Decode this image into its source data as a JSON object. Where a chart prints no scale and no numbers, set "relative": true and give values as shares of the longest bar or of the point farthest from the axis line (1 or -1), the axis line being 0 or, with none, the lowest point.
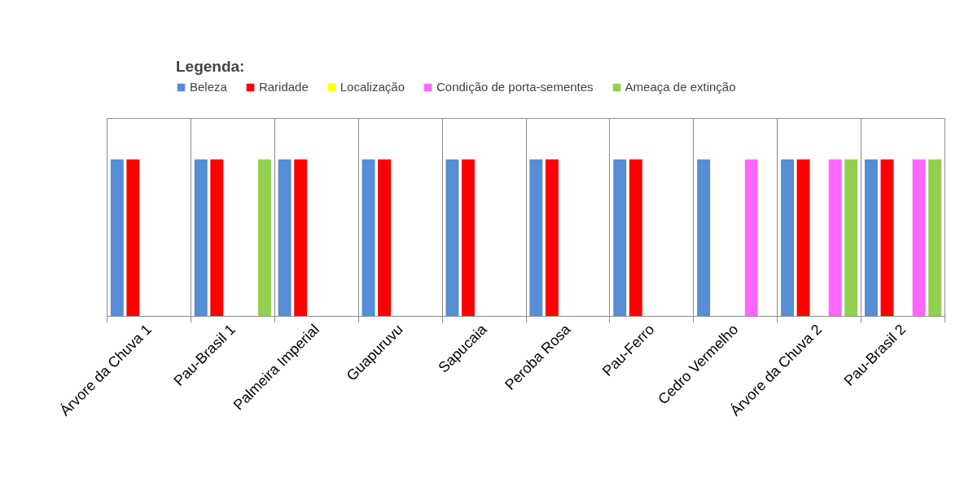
{
  "chart_data": {
    "type": "bar",
    "legend_title": "Legenda:",
    "relative": true,
    "grid": "x",
    "legend": "top",
    "categories": [
      "Árvore da Chuva 1",
      "Pau-Brasil 1",
      "Palmeira Imperial",
      "Guapuruvu",
      "Sapucaia",
      "Peroba Rosa",
      "Pau-Ferro",
      "Cedro Vermelho",
      "Árvore da Chuva 2",
      "Pau-Brasil 2"
    ],
    "series": [
      {
        "name": "Beleza",
        "color": "#558ed5",
        "values": [
          1,
          1,
          1,
          1,
          1,
          1,
          1,
          1,
          1,
          1
        ]
      },
      {
        "name": "Raridade",
        "color": "#ff0000",
        "values": [
          1,
          1,
          1,
          1,
          1,
          1,
          1,
          null,
          1,
          1
        ]
      },
      {
        "name": "Localização",
        "color": "#ffff00",
        "values": [
          null,
          null,
          null,
          null,
          null,
          null,
          null,
          null,
          null,
          null
        ]
      },
      {
        "name": "Condição de porta-sementes",
        "color": "#ff66ff",
        "values": [
          null,
          null,
          null,
          null,
          null,
          null,
          null,
          1,
          1,
          1
        ]
      },
      {
        "name": "Ameaça de extinção",
        "color": "#92d050",
        "values": [
          null,
          1,
          null,
          null,
          null,
          null,
          null,
          null,
          1,
          1
        ]
      }
    ]
  }
}
